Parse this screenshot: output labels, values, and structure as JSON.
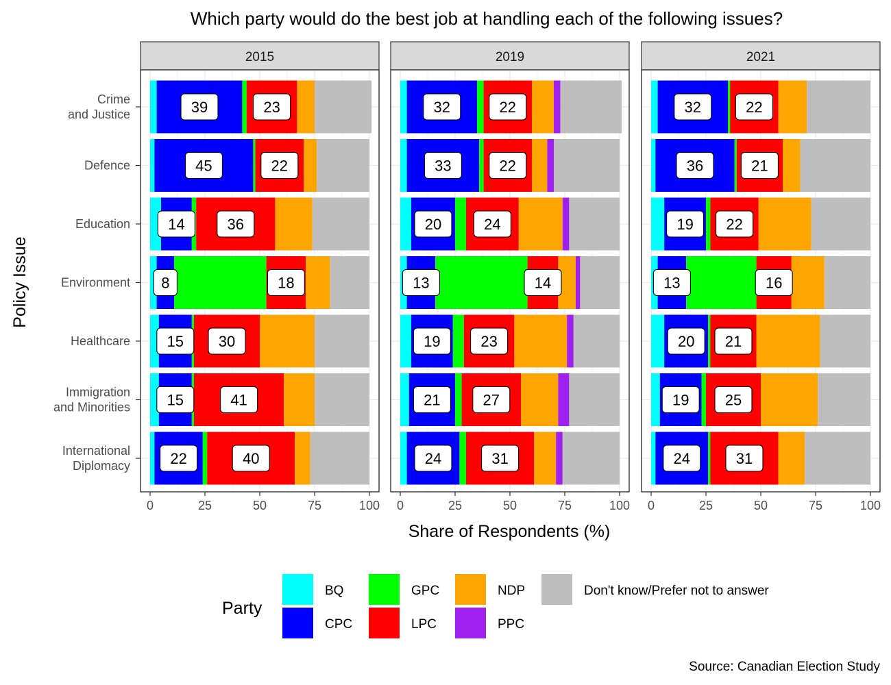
{
  "chart_data": {
    "type": "bar",
    "orientation": "horizontal",
    "stacked": true,
    "title": "Which party would do the best job at handling each of the following issues?",
    "xlabel": "Share of Respondents (%)",
    "ylabel": "Policy Issue",
    "xlim": [
      0,
      100
    ],
    "x_ticks": [
      "0",
      "25",
      "50",
      "75",
      "100"
    ],
    "caption": "Source: Canadian Election Study",
    "grid": true,
    "legend": {
      "title": "Party",
      "position": "bottom",
      "entries": [
        {
          "key": "BQ",
          "label": "BQ",
          "color": "#00FFFF"
        },
        {
          "key": "CPC",
          "label": "CPC",
          "color": "#0000FF"
        },
        {
          "key": "GPC",
          "label": "GPC",
          "color": "#00FF00"
        },
        {
          "key": "LPC",
          "label": "LPC",
          "color": "#FF0000"
        },
        {
          "key": "NDP",
          "label": "NDP",
          "color": "#FFA500"
        },
        {
          "key": "PPC",
          "label": "PPC",
          "color": "#A020F0"
        },
        {
          "key": "DK",
          "label": "Don't know/Prefer not to answer",
          "color": "#BEBEBE"
        }
      ]
    },
    "categories": [
      "Crime\nand Justice",
      "Defence",
      "Education",
      "Environment",
      "Healthcare",
      "Immigration\nand Minorities",
      "International\nDiplomacy"
    ],
    "panels": [
      {
        "label": "2015",
        "bars": [
          {
            "BQ": 3,
            "CPC": 39,
            "GPC": 2,
            "LPC": 23,
            "NDP": 8,
            "PPC": 0,
            "DK": 26
          },
          {
            "BQ": 2,
            "CPC": 45,
            "GPC": 1,
            "LPC": 22,
            "NDP": 6,
            "PPC": 0,
            "DK": 24
          },
          {
            "BQ": 5,
            "CPC": 14,
            "GPC": 2,
            "LPC": 36,
            "NDP": 17,
            "PPC": 0,
            "DK": 26
          },
          {
            "BQ": 3,
            "CPC": 8,
            "GPC": 42,
            "LPC": 18,
            "NDP": 11,
            "PPC": 0,
            "DK": 18
          },
          {
            "BQ": 4,
            "CPC": 15,
            "GPC": 1,
            "LPC": 30,
            "NDP": 25,
            "PPC": 0,
            "DK": 25
          },
          {
            "BQ": 4,
            "CPC": 15,
            "GPC": 1,
            "LPC": 41,
            "NDP": 14,
            "PPC": 0,
            "DK": 25
          },
          {
            "BQ": 2,
            "CPC": 22,
            "GPC": 2,
            "LPC": 40,
            "NDP": 7,
            "PPC": 0,
            "DK": 27
          }
        ],
        "labels": [
          {
            "CPC": 39,
            "LPC": 23
          },
          {
            "CPC": 45,
            "LPC": 22
          },
          {
            "CPC": 14,
            "LPC": 36
          },
          {
            "CPC": 8,
            "LPC": 18
          },
          {
            "CPC": 15,
            "LPC": 30
          },
          {
            "CPC": 15,
            "LPC": 41
          },
          {
            "CPC": 22,
            "LPC": 40
          }
        ]
      },
      {
        "label": "2019",
        "bars": [
          {
            "BQ": 3,
            "CPC": 32,
            "GPC": 3,
            "LPC": 22,
            "NDP": 10,
            "PPC": 3,
            "DK": 28
          },
          {
            "BQ": 3,
            "CPC": 33,
            "GPC": 2,
            "LPC": 22,
            "NDP": 7,
            "PPC": 3,
            "DK": 30
          },
          {
            "BQ": 5,
            "CPC": 20,
            "GPC": 5,
            "LPC": 24,
            "NDP": 20,
            "PPC": 3,
            "DK": 23
          },
          {
            "BQ": 3,
            "CPC": 13,
            "GPC": 42,
            "LPC": 14,
            "NDP": 8,
            "PPC": 2,
            "DK": 18
          },
          {
            "BQ": 5,
            "CPC": 19,
            "GPC": 5,
            "LPC": 23,
            "NDP": 24,
            "PPC": 3,
            "DK": 21
          },
          {
            "BQ": 4,
            "CPC": 21,
            "GPC": 3,
            "LPC": 27,
            "NDP": 17,
            "PPC": 5,
            "DK": 23
          },
          {
            "BQ": 3,
            "CPC": 24,
            "GPC": 3,
            "LPC": 31,
            "NDP": 10,
            "PPC": 3,
            "DK": 26
          }
        ],
        "labels": [
          {
            "CPC": 32,
            "LPC": 22
          },
          {
            "CPC": 33,
            "LPC": 22
          },
          {
            "CPC": 20,
            "LPC": 24
          },
          {
            "CPC": 13,
            "LPC": 14
          },
          {
            "CPC": 19,
            "LPC": 23
          },
          {
            "CPC": 21,
            "LPC": 27
          },
          {
            "CPC": 24,
            "LPC": 31
          }
        ]
      },
      {
        "label": "2021",
        "bars": [
          {
            "BQ": 3,
            "CPC": 32,
            "GPC": 1,
            "LPC": 22,
            "NDP": 13,
            "PPC": 0,
            "DK": 29
          },
          {
            "BQ": 2,
            "CPC": 36,
            "GPC": 1,
            "LPC": 21,
            "NDP": 8,
            "PPC": 0,
            "DK": 32
          },
          {
            "BQ": 6,
            "CPC": 19,
            "GPC": 2,
            "LPC": 22,
            "NDP": 24,
            "PPC": 0,
            "DK": 27
          },
          {
            "BQ": 3,
            "CPC": 13,
            "GPC": 32,
            "LPC": 16,
            "NDP": 15,
            "PPC": 0,
            "DK": 21
          },
          {
            "BQ": 6,
            "CPC": 20,
            "GPC": 1,
            "LPC": 21,
            "NDP": 29,
            "PPC": 0,
            "DK": 23
          },
          {
            "BQ": 4,
            "CPC": 19,
            "GPC": 2,
            "LPC": 25,
            "NDP": 26,
            "PPC": 0,
            "DK": 24
          },
          {
            "BQ": 2,
            "CPC": 24,
            "GPC": 1,
            "LPC": 31,
            "NDP": 12,
            "PPC": 0,
            "DK": 30
          }
        ],
        "labels": [
          {
            "CPC": 32,
            "LPC": 22
          },
          {
            "CPC": 36,
            "LPC": 21
          },
          {
            "CPC": 19,
            "LPC": 22
          },
          {
            "CPC": 13,
            "LPC": 16
          },
          {
            "CPC": 20,
            "LPC": 21
          },
          {
            "CPC": 19,
            "LPC": 25
          },
          {
            "CPC": 24,
            "LPC": 31
          }
        ]
      }
    ]
  }
}
